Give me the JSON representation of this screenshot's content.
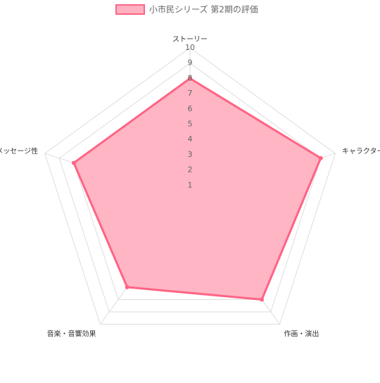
{
  "chart_data": {
    "type": "radar",
    "categories": [
      "ストーリー",
      "キャラクター",
      "作画・演出",
      "音楽・音響効果",
      "メッセージ性"
    ],
    "series": [
      {
        "name": "小市民シリーズ 第2期の評価",
        "color": "#ff6384",
        "fill": "#ffb1c1",
        "values": [
          8,
          9,
          8,
          7,
          8
        ]
      }
    ],
    "rlim": [
      0,
      10
    ],
    "rticks": [
      1,
      2,
      3,
      4,
      5,
      6,
      7,
      8,
      9,
      10
    ],
    "grid": true,
    "legend": "top"
  }
}
